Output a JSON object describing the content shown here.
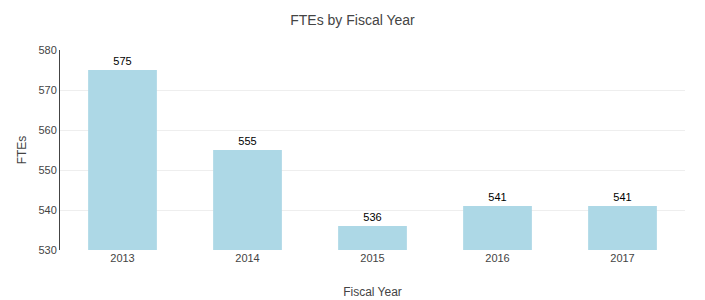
{
  "chart_data": {
    "type": "bar",
    "title": "FTEs by Fiscal Year",
    "xlabel": "Fiscal Year",
    "ylabel": "FTEs",
    "categories": [
      "2013",
      "2014",
      "2015",
      "2016",
      "2017"
    ],
    "values": [
      575,
      555,
      536,
      541,
      541
    ],
    "color": "#add8e6",
    "ylim": [
      530,
      580
    ],
    "yticks": [
      530,
      540,
      550,
      560,
      570,
      580
    ],
    "grid": true,
    "data_labels": true
  }
}
